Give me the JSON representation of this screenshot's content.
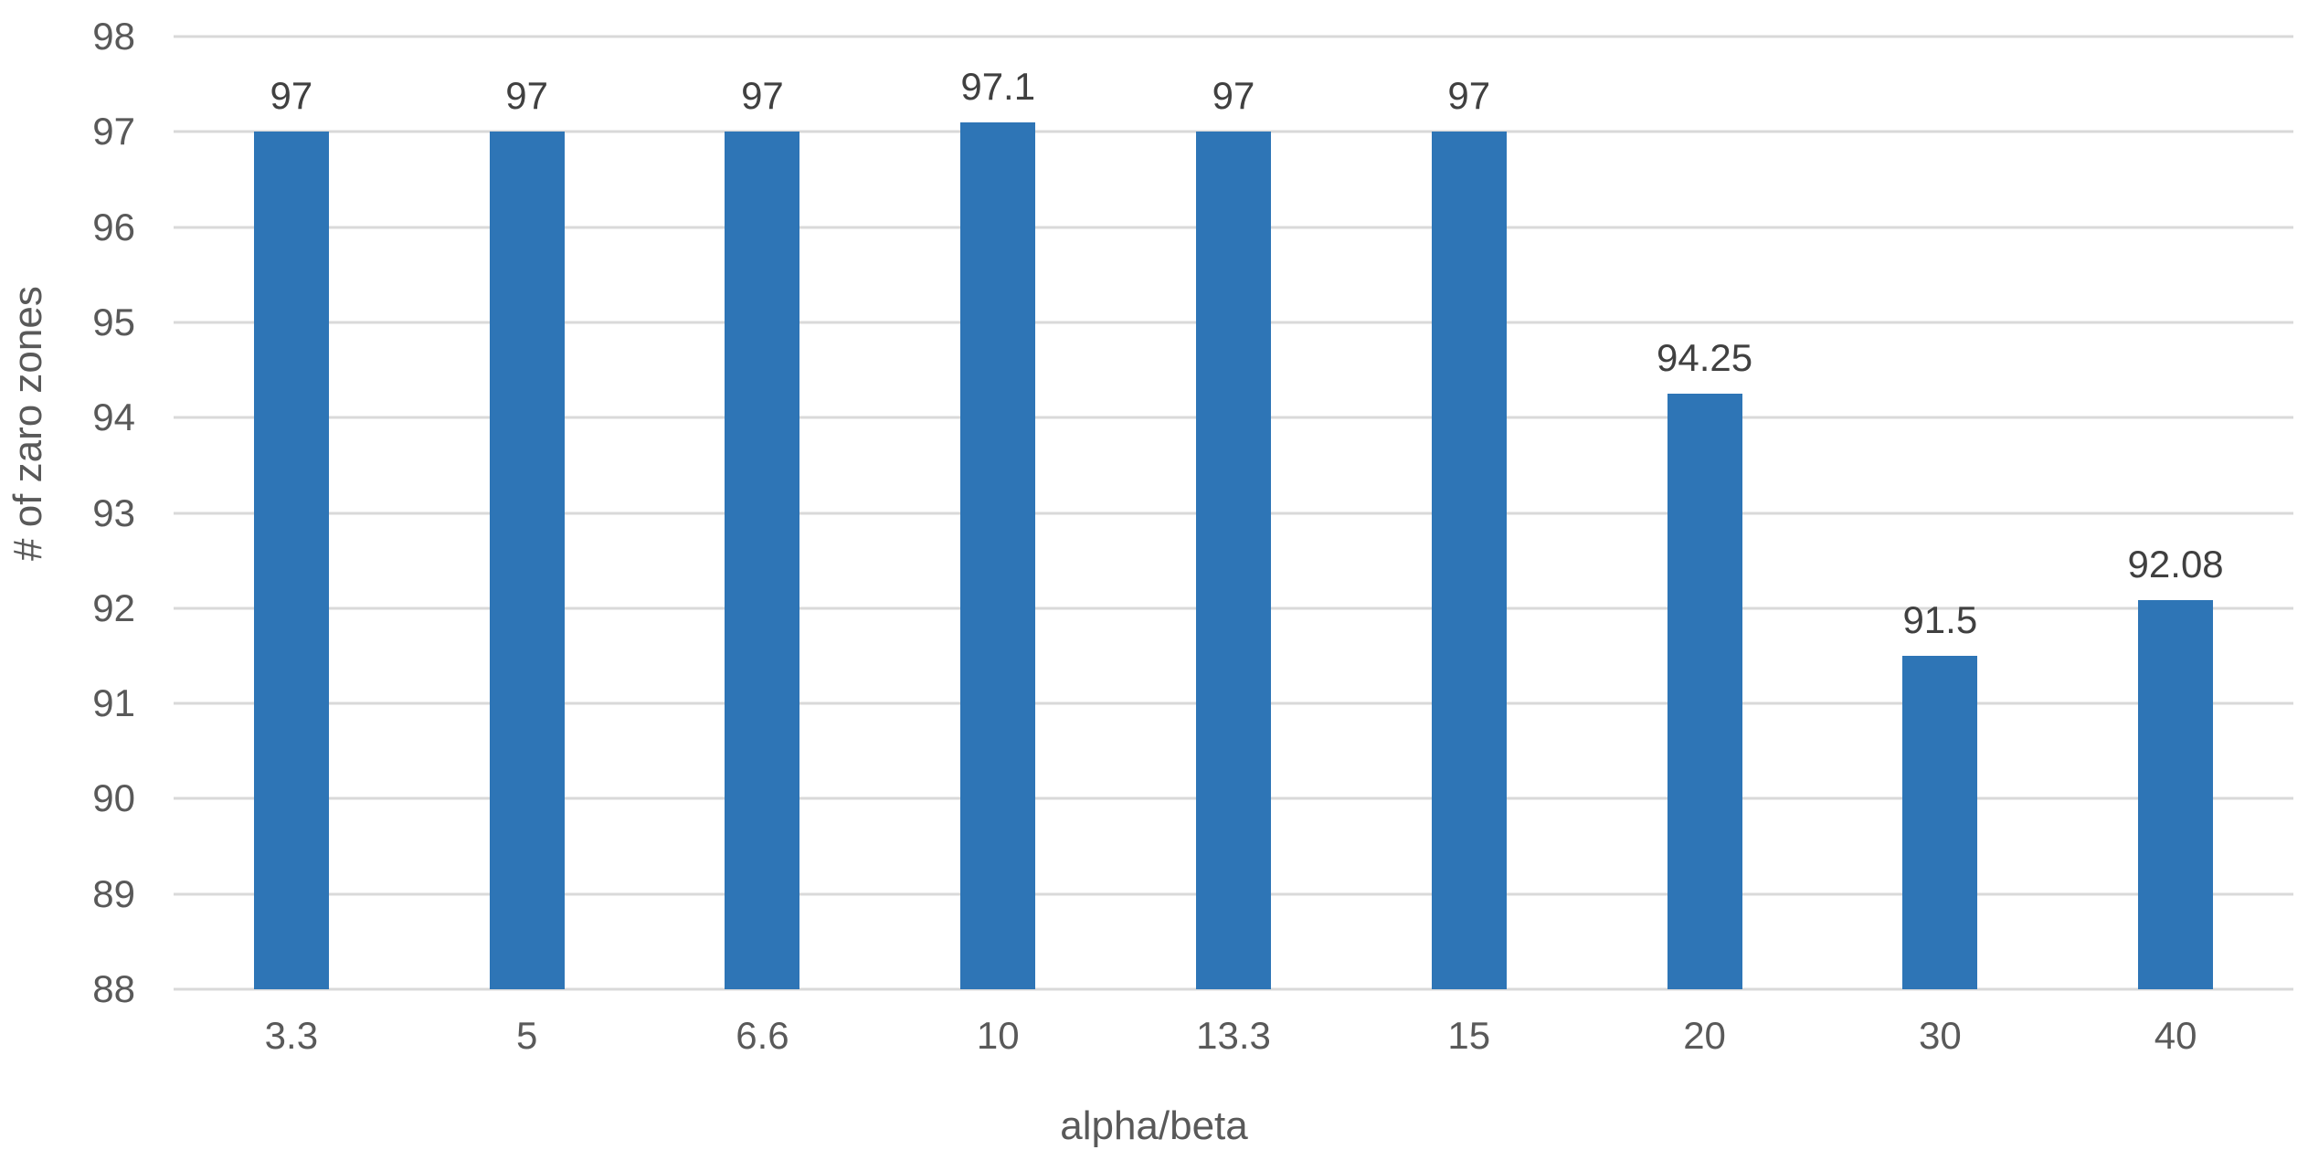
{
  "chart_data": {
    "type": "bar",
    "title": "",
    "xlabel": "alpha/beta",
    "ylabel": "# of zaro zones",
    "categories": [
      "3.3",
      "5",
      "6.6",
      "10",
      "13.3",
      "15",
      "20",
      "30",
      "40"
    ],
    "values": [
      97,
      97,
      97,
      97.1,
      97,
      97,
      94.25,
      91.5,
      92.08
    ],
    "data_labels": [
      "97",
      "97",
      "97",
      "97.1",
      "97",
      "97",
      "94.25",
      "91.5",
      "92.08"
    ],
    "ylim": [
      88,
      98
    ],
    "ytick_step": 1,
    "yticks": [
      "98",
      "97",
      "96",
      "95",
      "94",
      "93",
      "92",
      "91",
      "90",
      "89",
      "88"
    ],
    "grid": true,
    "legend_position": "none",
    "colors": {
      "bar": "#2E75B6",
      "gridline": "#D9D9D9",
      "tick_label": "#595959",
      "axis_title": "#595959",
      "data_label": "#404040",
      "background": "#FFFFFF"
    }
  }
}
